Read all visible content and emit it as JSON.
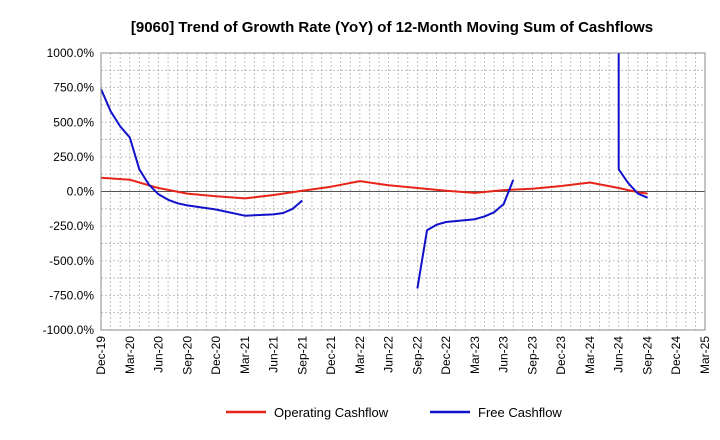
{
  "chart_data": {
    "type": "line",
    "title": "[9060]  Trend of Growth Rate (YoY) of 12-Month Moving Sum of Cashflows",
    "xlabel": "",
    "ylabel": "",
    "ylim": [
      -1000,
      1000
    ],
    "yticks": [
      "1000.0%",
      "750.0%",
      "500.0%",
      "250.0%",
      "0.0%",
      "-250.0%",
      "-500.0%",
      "-750.0%",
      "-1000.0%"
    ],
    "ytick_values": [
      1000,
      750,
      500,
      250,
      0,
      -250,
      -500,
      -750,
      -1000
    ],
    "xticks": [
      "Dec-19",
      "Mar-20",
      "Jun-20",
      "Sep-20",
      "Dec-20",
      "Mar-21",
      "Jun-21",
      "Sep-21",
      "Dec-21",
      "Mar-22",
      "Jun-22",
      "Sep-22",
      "Dec-22",
      "Mar-23",
      "Jun-23",
      "Sep-23",
      "Dec-23",
      "Mar-24",
      "Jun-24",
      "Sep-24",
      "Dec-24",
      "Mar-25"
    ],
    "grid": true,
    "legend_position": "bottom",
    "series": [
      {
        "name": "Operating Cashflow",
        "color": "#e8241a",
        "points": [
          [
            "Dec-19",
            100
          ],
          [
            "Mar-20",
            85
          ],
          [
            "Apr-20",
            65
          ],
          [
            "May-20",
            45
          ],
          [
            "Jun-20",
            25
          ],
          [
            "Sep-20",
            -15
          ],
          [
            "Dec-20",
            -35
          ],
          [
            "Mar-21",
            -50
          ],
          [
            "Jun-21",
            -25
          ],
          [
            "Sep-21",
            5
          ],
          [
            "Dec-21",
            35
          ],
          [
            "Mar-22",
            75
          ],
          [
            "Jun-22",
            45
          ],
          [
            "Sep-22",
            25
          ],
          [
            "Dec-22",
            5
          ],
          [
            "Mar-23",
            -10
          ],
          [
            "Jun-23",
            10
          ],
          [
            "Sep-23",
            20
          ],
          [
            "Dec-23",
            40
          ],
          [
            "Mar-24",
            65
          ],
          [
            "Jun-24",
            25
          ],
          [
            "Jul-24",
            10
          ],
          [
            "Aug-24",
            -5
          ],
          [
            "Sep-24",
            -15
          ]
        ]
      },
      {
        "name": "Free Cashflow",
        "color": "#1111cc",
        "segments": [
          [
            [
              "Dec-19",
              740
            ],
            [
              "Jan-20",
              580
            ],
            [
              "Feb-20",
              470
            ],
            [
              "Mar-20",
              390
            ],
            [
              "Apr-20",
              160
            ],
            [
              "May-20",
              50
            ],
            [
              "Jun-20",
              -20
            ],
            [
              "Jul-20",
              -60
            ],
            [
              "Aug-20",
              -85
            ],
            [
              "Sep-20",
              -100
            ],
            [
              "Dec-20",
              -130
            ],
            [
              "Mar-21",
              -175
            ],
            [
              "Jun-21",
              -165
            ],
            [
              "Jul-21",
              -155
            ],
            [
              "Aug-21",
              -125
            ],
            [
              "Sep-21",
              -65
            ]
          ],
          [
            [
              "Sep-22",
              -700
            ],
            [
              "Oct-22",
              -280
            ],
            [
              "Nov-22",
              -240
            ],
            [
              "Dec-22",
              -220
            ],
            [
              "Mar-23",
              -200
            ],
            [
              "Apr-23",
              -180
            ],
            [
              "May-23",
              -150
            ],
            [
              "Jun-23",
              -90
            ],
            [
              "Jul-23",
              85
            ]
          ],
          [
            [
              "Jun-24",
              1000
            ],
            [
              "Jun-24",
              160
            ],
            [
              "Jul-24",
              60
            ],
            [
              "Aug-24",
              -15
            ],
            [
              "Sep-24",
              -45
            ]
          ]
        ]
      }
    ]
  }
}
